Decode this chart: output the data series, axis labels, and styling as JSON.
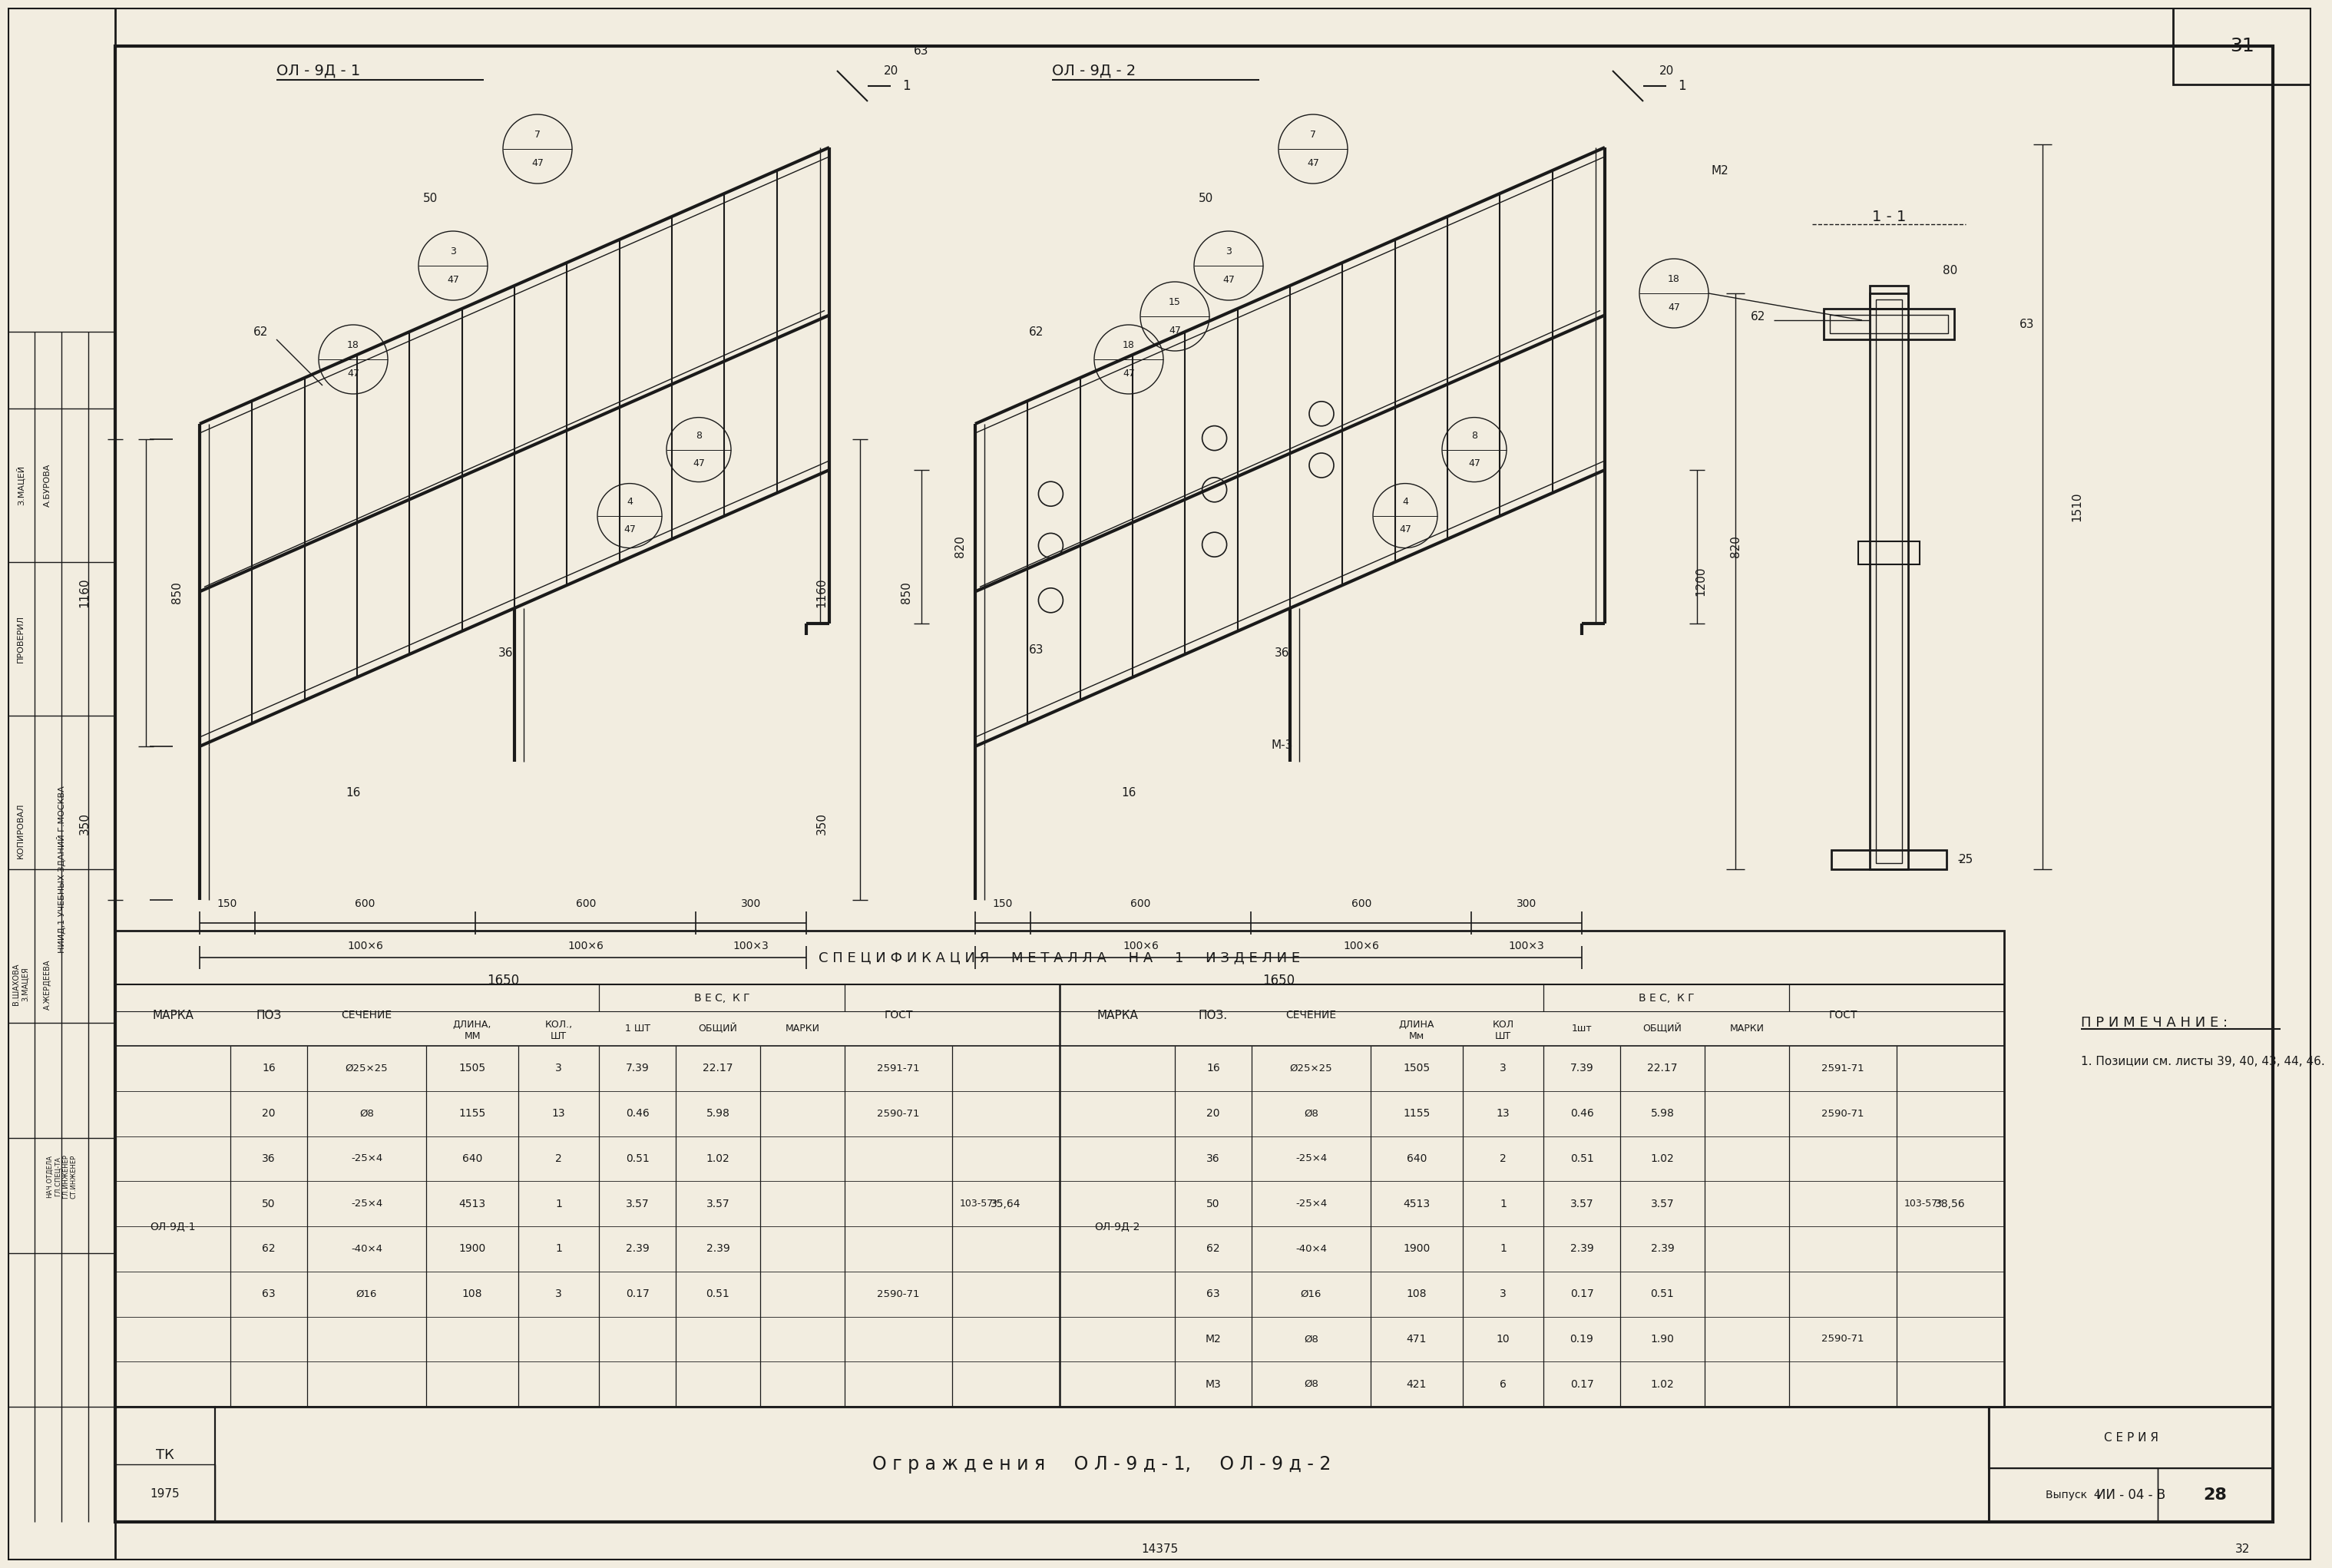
{
  "bg_color": "#f2ede0",
  "line_color": "#1a1a1a",
  "white": "#ffffff",
  "title_bottom": "О г р а ж д е н и я     О Л - 9 д - 1,     О Л - 9 д - 2",
  "label_ol1": "ОЛ - 9Д - 1",
  "label_ol2": "ОЛ - 9Д - 2",
  "note_title": "П Р И М Е Ч А Н И Е :",
  "note_text": "1. Позиции см. листы 39, 40, 43, 44, 46.",
  "series_label": "С Е Р И Я",
  "series_value": "ИИ - 04 - В",
  "sheet_num": "28",
  "year": "1975",
  "page_num": "31",
  "bottom_num": "14375",
  "stamp_num": "32",
  "spec_header": "С П Е Ц И Ф И К А Ц И Я     М Е Т А Л Л А     Н А     1     И З Д Е Л И Е",
  "spec_rows_ol1": [
    [
      "16",
      "Ø25×25",
      "1505",
      "3",
      "7.39",
      "22.17",
      "2591-71",
      ""
    ],
    [
      "20",
      "Ø8",
      "1155",
      "13",
      "0.46",
      "5.98",
      "2590-71",
      ""
    ],
    [
      "36",
      "-25×4",
      "640",
      "2",
      "0.51",
      "1.02",
      "",
      "103-57*"
    ],
    [
      "50",
      "-25×4",
      "4513",
      "1",
      "3.57",
      "3.57",
      "",
      ""
    ],
    [
      "62",
      "-40×4",
      "1900",
      "1",
      "2.39",
      "2.39",
      "",
      ""
    ],
    [
      "63",
      "Ø16",
      "108",
      "3",
      "0.17",
      "0.51",
      "2590-71",
      ""
    ]
  ],
  "weight_ol1": "35,64",
  "gost_bracket_ol1": "103-57*",
  "spec_rows_ol2": [
    [
      "16",
      "Ø25×25",
      "1505",
      "3",
      "7.39",
      "22.17",
      "2591-71",
      ""
    ],
    [
      "20",
      "Ø8",
      "1155",
      "13",
      "0.46",
      "5.98",
      "2590-71",
      ""
    ],
    [
      "36",
      "-25×4",
      "640",
      "2",
      "0.51",
      "1.02",
      "",
      "103-57*"
    ],
    [
      "50",
      "-25×4",
      "4513",
      "1",
      "3.57",
      "3.57",
      "",
      ""
    ],
    [
      "62",
      "-40×4",
      "1900",
      "1",
      "2.39",
      "2.39",
      "",
      ""
    ],
    [
      "63",
      "Ø16",
      "108",
      "3",
      "0.17",
      "0.51",
      "",
      ""
    ],
    [
      "М2",
      "Ø8",
      "471",
      "10",
      "0.19",
      "1.90",
      "2590-71",
      ""
    ],
    [
      "М3",
      "Ø8",
      "421",
      "6",
      "0.17",
      "1.02",
      "",
      ""
    ]
  ],
  "weight_ol2": "38,56",
  "gost_bracket_ol2": "103-57*"
}
